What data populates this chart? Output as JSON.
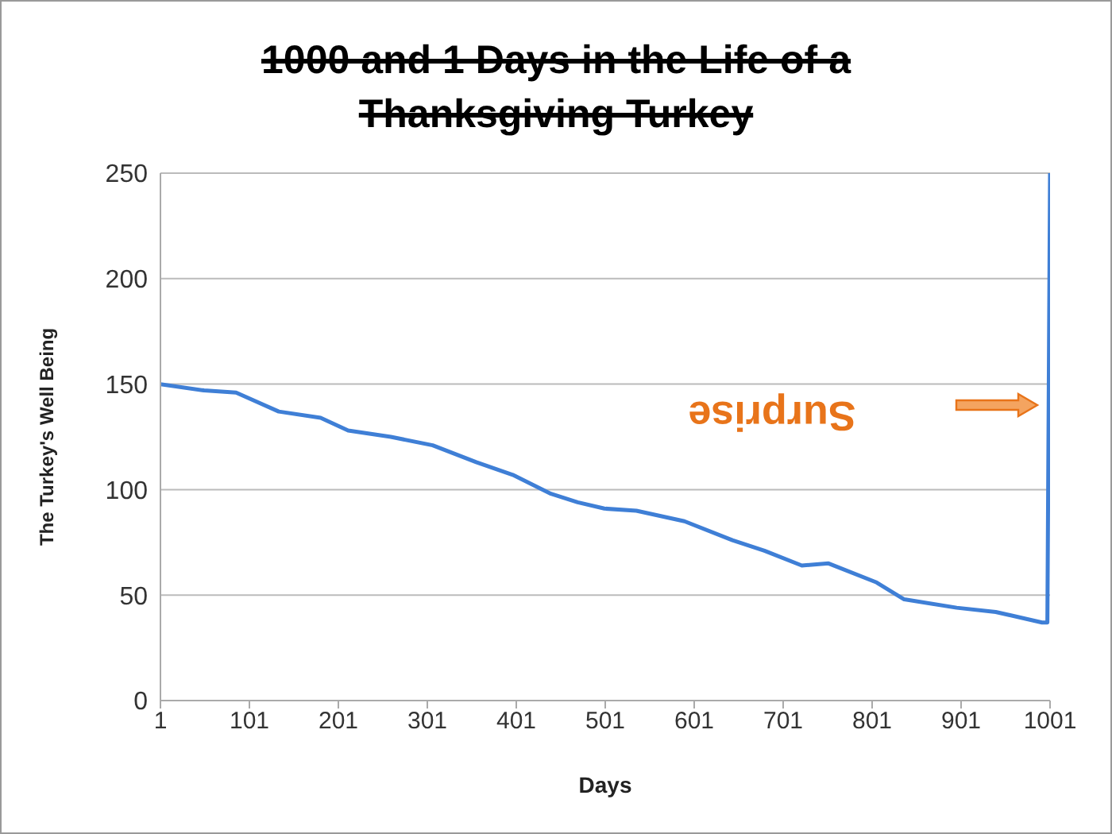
{
  "chart_data": {
    "type": "line",
    "title": "1000 and 1 Days in the Life of a Thanksgiving Turkey",
    "xlabel": "Days",
    "ylabel": "The Turkey's Well Being",
    "x": [
      1,
      50,
      86,
      134,
      181,
      212,
      260,
      307,
      356,
      397,
      440,
      470,
      500,
      536,
      590,
      644,
      680,
      722,
      752,
      806,
      837,
      896,
      940,
      992,
      998,
      1001
    ],
    "series": [
      {
        "color": "#3f7fd6",
        "values": [
          150,
          147,
          146,
          137,
          134,
          128,
          125,
          121,
          113,
          107,
          98,
          94,
          91,
          90,
          85,
          76,
          71,
          64,
          65,
          56,
          48,
          44,
          42,
          37,
          37,
          250
        ]
      }
    ],
    "xlim": [
      1,
      1001
    ],
    "xticks": [
      1,
      101,
      201,
      301,
      401,
      501,
      601,
      701,
      801,
      901,
      1001
    ],
    "ylim": [
      0,
      250
    ],
    "yticks": [
      0,
      50,
      100,
      150,
      200,
      250
    ],
    "grid": "y",
    "legend": false,
    "marker": "none",
    "line_style": "solid",
    "annotations": [
      "Surprise"
    ]
  }
}
